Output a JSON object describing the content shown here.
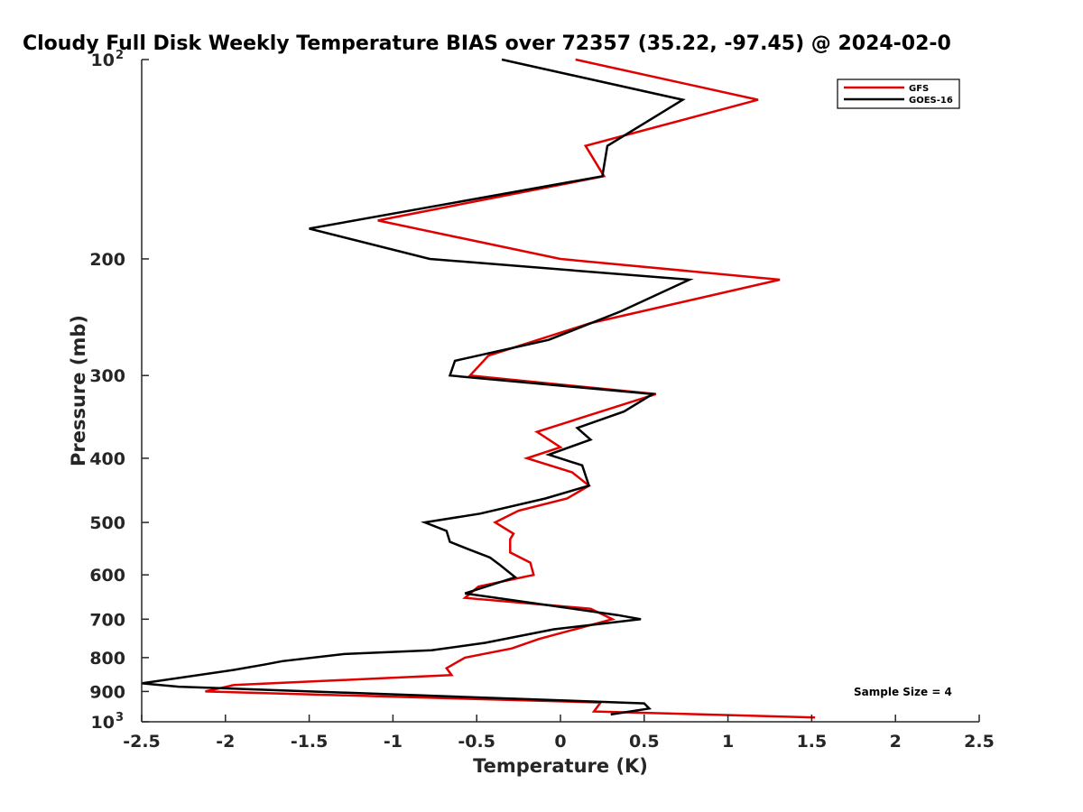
{
  "chart_data": {
    "type": "line",
    "title": "Cloudy Full Disk Weekly Temperature BIAS over 72357 (35.22, -97.45) @ 2024-02-0",
    "xlabel": "Temperature (K)",
    "ylabel": "Pressure (mb)",
    "xlim": [
      -2.5,
      2.5
    ],
    "ylim": [
      100,
      1000
    ],
    "y_scale": "log",
    "y_reversed": true,
    "grid": false,
    "legend_position": "top-right",
    "x_ticks": [
      "-2.5",
      "-2",
      "-1.5",
      "-1",
      "-0.5",
      "0",
      "0.5",
      "1",
      "1.5",
      "2",
      "2.5"
    ],
    "x_tick_values": [
      -2.5,
      -2,
      -1.5,
      -1,
      -0.5,
      0,
      0.5,
      1,
      1.5,
      2,
      2.5
    ],
    "y_ticks": [
      {
        "value": 100,
        "base": "10",
        "exp": "2"
      },
      {
        "value": 200,
        "label": "200"
      },
      {
        "value": 300,
        "label": "300"
      },
      {
        "value": 400,
        "label": "400"
      },
      {
        "value": 500,
        "label": "500"
      },
      {
        "value": 600,
        "label": "600"
      },
      {
        "value": 700,
        "label": "700"
      },
      {
        "value": 800,
        "label": "800"
      },
      {
        "value": 900,
        "label": "900"
      },
      {
        "value": 1000,
        "base": "10",
        "exp": "3"
      }
    ],
    "annotation": "Sample Size = 4",
    "series": [
      {
        "name": "GFS",
        "color": "#e00000",
        "points": [
          [
            0.09,
            100
          ],
          [
            1.18,
            115
          ],
          [
            0.15,
            135
          ],
          [
            0.26,
            150
          ],
          [
            -1.09,
            175
          ],
          [
            0,
            200
          ],
          [
            1.31,
            215
          ],
          [
            0.18,
            250
          ],
          [
            -0.43,
            280
          ],
          [
            -0.54,
            300
          ],
          [
            0.57,
            320
          ],
          [
            -0.14,
            365
          ],
          [
            0,
            385
          ],
          [
            -0.2,
            400
          ],
          [
            0.07,
            420
          ],
          [
            0.17,
            440
          ],
          [
            0.04,
            460
          ],
          [
            -0.25,
            480
          ],
          [
            -0.39,
            500
          ],
          [
            -0.28,
            520
          ],
          [
            -0.3,
            530
          ],
          [
            -0.3,
            555
          ],
          [
            -0.18,
            575
          ],
          [
            -0.16,
            600
          ],
          [
            -0.49,
            625
          ],
          [
            -0.57,
            650
          ],
          [
            0.18,
            675
          ],
          [
            0.31,
            700
          ],
          [
            -0.13,
            750
          ],
          [
            -0.29,
            775
          ],
          [
            -0.57,
            800
          ],
          [
            -0.68,
            830
          ],
          [
            -0.65,
            850
          ],
          [
            -1.08,
            860
          ],
          [
            -1.95,
            880
          ],
          [
            -2.12,
            900
          ],
          [
            0.24,
            935
          ],
          [
            0.2,
            965
          ],
          [
            1.52,
            985
          ]
        ]
      },
      {
        "name": "GOES-16",
        "color": "#000000",
        "points": [
          [
            -0.35,
            100
          ],
          [
            0.73,
            115
          ],
          [
            0.28,
            135
          ],
          [
            0.25,
            150
          ],
          [
            -1.5,
            180
          ],
          [
            -0.78,
            200
          ],
          [
            0.77,
            215
          ],
          [
            0.36,
            240
          ],
          [
            -0.07,
            265
          ],
          [
            -0.63,
            285
          ],
          [
            -0.66,
            300
          ],
          [
            0.55,
            320
          ],
          [
            0.38,
            340
          ],
          [
            0.1,
            360
          ],
          [
            0.18,
            375
          ],
          [
            -0.07,
            395
          ],
          [
            0.13,
            410
          ],
          [
            0.17,
            440
          ],
          [
            -0.09,
            460
          ],
          [
            -0.48,
            485
          ],
          [
            -0.81,
            500
          ],
          [
            -0.68,
            515
          ],
          [
            -0.66,
            535
          ],
          [
            -0.54,
            550
          ],
          [
            -0.42,
            565
          ],
          [
            -0.36,
            580
          ],
          [
            -0.27,
            605
          ],
          [
            -0.57,
            640
          ],
          [
            0.34,
            690
          ],
          [
            0.48,
            700
          ],
          [
            -0.04,
            725
          ],
          [
            -0.45,
            760
          ],
          [
            -0.77,
            780
          ],
          [
            -1.29,
            790
          ],
          [
            -1.66,
            810
          ],
          [
            -1.77,
            820
          ],
          [
            -1.95,
            835
          ],
          [
            -2.5,
            875
          ],
          [
            -2.28,
            885
          ],
          [
            0.5,
            938
          ],
          [
            0.53,
            955
          ],
          [
            0.3,
            975
          ]
        ]
      }
    ]
  }
}
